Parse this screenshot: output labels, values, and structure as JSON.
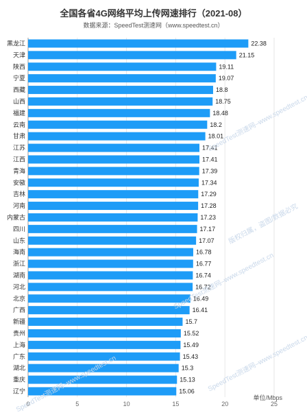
{
  "title": "全国各省4G网络平均上传网速排行（2021-08）",
  "subtitle": "数据来源：SpeedTest测速网（www.speedtest.cn）",
  "unit_label": "单位/Mbps",
  "watermark": [
    "SpeedTest测速网–www.speedtest.cn",
    "版权归属，盗图/数据必究",
    "尊重版权，盗图/数据必究"
  ],
  "colors": {
    "bar": "#1e9cf7",
    "grid": "#e6e6e6",
    "text": "#333333"
  },
  "chart_data": {
    "type": "bar",
    "orientation": "horizontal",
    "title": "全国各省4G网络平均上传网速排行（2021-08）",
    "subtitle": "数据来源：SpeedTest测速网（www.speedtest.cn）",
    "xlabel": "单位/Mbps",
    "xlim": [
      0,
      25
    ],
    "xticks": [
      0,
      5,
      10,
      15,
      20,
      25
    ],
    "grid": true,
    "categories": [
      "黑龙江",
      "天津",
      "陕西",
      "宁夏",
      "西藏",
      "山西",
      "福建",
      "云南",
      "甘肃",
      "江苏",
      "江西",
      "青海",
      "安徽",
      "吉林",
      "河南",
      "内蒙古",
      "四川",
      "山东",
      "海南",
      "浙江",
      "湖南",
      "河北",
      "北京",
      "广西",
      "新疆",
      "贵州",
      "上海",
      "广东",
      "湖北",
      "重庆",
      "辽宁"
    ],
    "values": [
      22.38,
      21.15,
      19.11,
      19.07,
      18.8,
      18.75,
      18.48,
      18.2,
      18.01,
      17.41,
      17.41,
      17.39,
      17.34,
      17.29,
      17.28,
      17.23,
      17.17,
      17.07,
      16.78,
      16.77,
      16.74,
      16.72,
      16.49,
      16.41,
      15.7,
      15.52,
      15.49,
      15.43,
      15.3,
      15.13,
      15.06
    ],
    "labels": [
      "22.38",
      "21.15",
      "19.11",
      "19.07",
      "18.8",
      "18.75",
      "18.48",
      "18.2",
      "18.01",
      "17.41",
      "17.41",
      "17.39",
      "17.34",
      "17.29",
      "17.28",
      "17.23",
      "17.17",
      "17.07",
      "16.78",
      "16.77",
      "16.74",
      "16.72",
      "16.49",
      "16.41",
      "15.7",
      "15.52",
      "15.49",
      "15.43",
      "15.3",
      "15.13",
      "15.06"
    ]
  }
}
